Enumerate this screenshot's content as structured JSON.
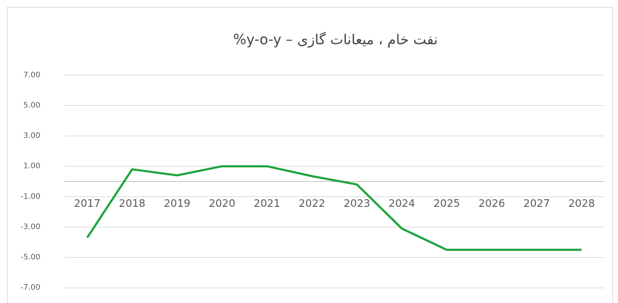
{
  "chart_data": {
    "type": "line",
    "title": "نفت خام ، میعانات گازی – y-o-y%",
    "categories": [
      "2017",
      "2018",
      "2019",
      "2020",
      "2021",
      "2022",
      "2023",
      "2024",
      "2025",
      "2026",
      "2027",
      "2028"
    ],
    "series": [
      {
        "color": "#1aa33a",
        "values": [
          -3.7,
          0.8,
          0.4,
          1.0,
          1.0,
          0.35,
          -0.2,
          -3.1,
          -4.5,
          -4.5,
          -4.5,
          -4.5
        ]
      }
    ],
    "ylim": [
      -8,
      8
    ],
    "yticks": [
      {
        "value": 7,
        "label": "7.00"
      },
      {
        "value": 5,
        "label": "5.00"
      },
      {
        "value": 3,
        "label": "3.00"
      },
      {
        "value": 1,
        "label": "1.00"
      },
      {
        "value": -1,
        "label": "-1.00"
      },
      {
        "value": -3,
        "label": "-3.00"
      },
      {
        "value": -5,
        "label": "-5.00"
      },
      {
        "value": -7,
        "label": "-7.00"
      }
    ],
    "grid": true
  }
}
